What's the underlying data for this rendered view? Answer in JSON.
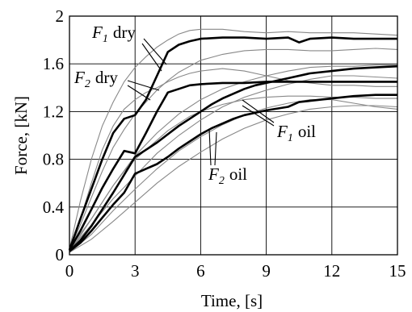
{
  "chart_data": {
    "type": "line",
    "xlabel": "Time, [s]",
    "ylabel": "Force, [kN]",
    "xlim": [
      0,
      15
    ],
    "ylim": [
      0,
      2
    ],
    "xticks": [
      "0",
      "3",
      "6",
      "9",
      "12",
      "15"
    ],
    "yticks": [
      "0",
      "0.4",
      "0.8",
      "1.2",
      "1.6",
      "2"
    ],
    "grid": true,
    "series": [
      {
        "name": "F1 dry",
        "color": "#000000",
        "x": [
          0,
          0.5,
          1,
          1.5,
          2,
          2.5,
          3,
          3.5,
          4,
          4.5,
          5,
          5.5,
          6,
          7,
          8,
          9,
          10,
          10.5,
          11,
          12,
          13,
          14,
          15
        ],
        "y": [
          0.04,
          0.3,
          0.55,
          0.8,
          1.02,
          1.14,
          1.17,
          1.3,
          1.5,
          1.7,
          1.76,
          1.79,
          1.81,
          1.82,
          1.82,
          1.81,
          1.82,
          1.78,
          1.81,
          1.82,
          1.81,
          1.81,
          1.81
        ]
      },
      {
        "name": "F2 dry",
        "color": "#000000",
        "x": [
          0,
          0.5,
          1,
          1.5,
          2,
          2.5,
          3,
          3.5,
          4,
          4.5,
          5,
          5.5,
          6,
          7,
          8,
          9,
          10,
          11,
          12,
          13,
          14,
          15
        ],
        "y": [
          0.04,
          0.2,
          0.38,
          0.56,
          0.72,
          0.87,
          0.85,
          1.02,
          1.2,
          1.36,
          1.39,
          1.42,
          1.43,
          1.44,
          1.44,
          1.45,
          1.45,
          1.45,
          1.45,
          1.45,
          1.45,
          1.45
        ]
      },
      {
        "name": "F1 oil",
        "color": "#000000",
        "x": [
          0,
          0.5,
          1,
          1.5,
          2,
          2.5,
          3,
          3.5,
          4,
          4.5,
          5,
          5.5,
          6,
          6.5,
          7,
          7.5,
          8,
          8.5,
          9,
          10,
          11,
          12,
          13,
          14,
          15
        ],
        "y": [
          0.03,
          0.12,
          0.24,
          0.38,
          0.52,
          0.67,
          0.82,
          0.88,
          0.94,
          1.01,
          1.08,
          1.14,
          1.2,
          1.26,
          1.31,
          1.35,
          1.39,
          1.42,
          1.44,
          1.48,
          1.52,
          1.54,
          1.56,
          1.57,
          1.58
        ]
      },
      {
        "name": "F2 oil",
        "color": "#000000",
        "x": [
          0,
          0.5,
          1,
          1.5,
          2,
          2.5,
          3,
          3.5,
          4,
          4.5,
          5,
          5.5,
          6,
          6.5,
          7,
          7.5,
          8,
          8.5,
          9,
          10,
          10.5,
          11,
          12,
          13,
          14,
          15
        ],
        "y": [
          0.03,
          0.1,
          0.2,
          0.31,
          0.42,
          0.52,
          0.68,
          0.72,
          0.76,
          0.82,
          0.89,
          0.95,
          1.01,
          1.06,
          1.1,
          1.14,
          1.17,
          1.19,
          1.21,
          1.24,
          1.28,
          1.29,
          1.31,
          1.33,
          1.34,
          1.34
        ]
      }
    ],
    "envelope_series": [
      {
        "name": "F1 dry upper",
        "color": "#888888",
        "x": [
          0,
          0.5,
          1,
          1.5,
          2,
          2.5,
          3,
          3.5,
          4,
          4.5,
          5,
          5.5,
          6,
          7,
          8,
          9,
          10,
          11,
          12,
          13,
          14,
          15
        ],
        "y": [
          0.05,
          0.45,
          0.8,
          1.08,
          1.28,
          1.45,
          1.57,
          1.66,
          1.74,
          1.8,
          1.85,
          1.88,
          1.89,
          1.89,
          1.87,
          1.86,
          1.87,
          1.86,
          1.86,
          1.86,
          1.85,
          1.84
        ]
      },
      {
        "name": "F1 dry lower",
        "color": "#888888",
        "x": [
          0,
          0.5,
          1,
          1.5,
          2,
          2.5,
          3,
          3.5,
          4,
          4.5,
          5,
          5.5,
          6,
          7,
          8,
          9,
          10,
          11,
          12,
          13,
          14,
          15
        ],
        "y": [
          0.04,
          0.25,
          0.48,
          0.7,
          0.9,
          1.05,
          1.18,
          1.28,
          1.38,
          1.46,
          1.53,
          1.58,
          1.63,
          1.68,
          1.71,
          1.72,
          1.72,
          1.71,
          1.71,
          1.72,
          1.73,
          1.72
        ]
      },
      {
        "name": "F2 dry upper",
        "color": "#888888",
        "x": [
          0,
          0.5,
          1,
          1.5,
          2,
          2.5,
          3,
          3.5,
          4,
          4.5,
          5,
          5.5,
          6,
          7,
          8,
          9,
          10,
          11,
          12,
          13,
          14,
          15
        ],
        "y": [
          0.04,
          0.3,
          0.6,
          0.88,
          1.08,
          1.22,
          1.3,
          1.36,
          1.4,
          1.45,
          1.49,
          1.52,
          1.54,
          1.56,
          1.54,
          1.5,
          1.46,
          1.44,
          1.42,
          1.42,
          1.41,
          1.41
        ]
      },
      {
        "name": "F2 dry lower",
        "color": "#888888",
        "x": [
          0,
          0.5,
          1,
          1.5,
          2,
          2.5,
          3,
          3.5,
          4,
          4.5,
          5,
          5.5,
          6,
          7,
          8,
          9,
          10,
          11,
          12,
          13,
          14,
          15
        ],
        "y": [
          0.03,
          0.16,
          0.3,
          0.44,
          0.58,
          0.7,
          0.8,
          0.88,
          0.96,
          1.04,
          1.1,
          1.16,
          1.2,
          1.26,
          1.3,
          1.32,
          1.33,
          1.33,
          1.32,
          1.32,
          1.31,
          1.31
        ]
      },
      {
        "name": "F1 oil upper",
        "color": "#888888",
        "x": [
          0,
          1,
          2,
          3,
          4,
          5,
          6,
          7,
          8,
          9,
          10,
          11,
          12,
          13,
          14,
          15
        ],
        "y": [
          0.05,
          0.3,
          0.58,
          0.83,
          1.02,
          1.18,
          1.3,
          1.39,
          1.45,
          1.5,
          1.54,
          1.57,
          1.58,
          1.58,
          1.59,
          1.59
        ]
      },
      {
        "name": "F1 oil lower",
        "color": "#888888",
        "x": [
          0,
          1,
          2,
          3,
          4,
          5,
          6,
          7,
          8,
          9,
          10,
          11,
          12,
          13,
          14,
          15
        ],
        "y": [
          0.02,
          0.17,
          0.37,
          0.55,
          0.72,
          0.87,
          0.99,
          1.09,
          1.17,
          1.23,
          1.27,
          1.3,
          1.3,
          1.27,
          1.24,
          1.22
        ]
      },
      {
        "name": "F2 oil upper",
        "color": "#888888",
        "x": [
          0,
          1,
          2,
          3,
          4,
          5,
          6,
          7,
          8,
          9,
          10,
          11,
          12,
          13,
          14,
          15
        ],
        "y": [
          0.04,
          0.25,
          0.47,
          0.66,
          0.85,
          1.0,
          1.13,
          1.24,
          1.32,
          1.38,
          1.43,
          1.47,
          1.5,
          1.5,
          1.49,
          1.48
        ]
      },
      {
        "name": "F2 oil lower",
        "color": "#888888",
        "x": [
          0,
          1,
          2,
          3,
          4,
          5,
          6,
          7,
          8,
          9,
          10,
          11,
          12,
          13,
          14,
          15
        ],
        "y": [
          0.02,
          0.13,
          0.28,
          0.44,
          0.6,
          0.74,
          0.86,
          0.97,
          1.06,
          1.13,
          1.18,
          1.22,
          1.24,
          1.25,
          1.25,
          1.24
        ]
      }
    ]
  },
  "annotations": {
    "f1_dry": {
      "sym": "F",
      "sub": "1",
      "word": "dry"
    },
    "f2_dry": {
      "sym": "F",
      "sub": "2",
      "word": "dry"
    },
    "f1_oil": {
      "sym": "F",
      "sub": "1",
      "word": "oil"
    },
    "f2_oil": {
      "sym": "F",
      "sub": "2",
      "word": "oil"
    }
  }
}
